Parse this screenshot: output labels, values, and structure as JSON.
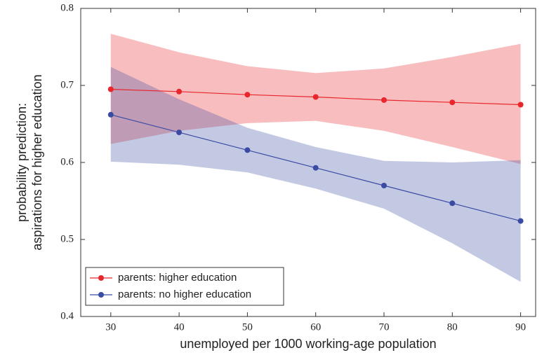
{
  "chart_data": {
    "type": "line",
    "xlabel": "unemployed per 1000 working-age population",
    "ylabel": [
      "probability prediction:",
      "aspirations for higher education"
    ],
    "x": [
      30,
      40,
      50,
      60,
      70,
      80,
      90
    ],
    "series": [
      {
        "name": "parents: higher education",
        "color": "#e8262c",
        "values": [
          0.695,
          0.692,
          0.688,
          0.685,
          0.681,
          0.678,
          0.675
        ],
        "lower": [
          0.624,
          0.641,
          0.651,
          0.654,
          0.641,
          0.62,
          0.598
        ],
        "upper": [
          0.767,
          0.743,
          0.725,
          0.716,
          0.722,
          0.737,
          0.754
        ]
      },
      {
        "name": "parents: no higher education",
        "color": "#3a4ba3",
        "values": [
          0.662,
          0.639,
          0.616,
          0.593,
          0.57,
          0.547,
          0.524
        ],
        "lower": [
          0.601,
          0.597,
          0.587,
          0.566,
          0.54,
          0.495,
          0.445
        ],
        "upper": [
          0.724,
          0.682,
          0.645,
          0.62,
          0.602,
          0.6,
          0.603
        ]
      }
    ],
    "xlim": [
      25.6,
      92.2
    ],
    "xticks": [
      30,
      40,
      50,
      60,
      70,
      80,
      90
    ],
    "ylim": [
      0.4,
      0.8
    ],
    "yticks": [
      0.4,
      0.5,
      0.6,
      0.7,
      0.8
    ],
    "legend": "lower left"
  }
}
